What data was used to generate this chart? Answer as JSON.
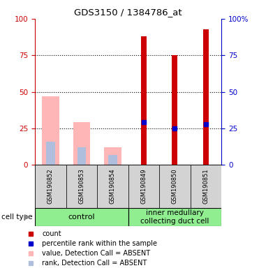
{
  "title": "GDS3150 / 1384786_at",
  "samples": [
    "GSM190852",
    "GSM190853",
    "GSM190854",
    "GSM190849",
    "GSM190850",
    "GSM190851"
  ],
  "red_bars": [
    0,
    0,
    0,
    88,
    75,
    93
  ],
  "pink_bars": [
    47,
    29,
    12,
    0,
    0,
    0
  ],
  "blue_dots_y": [
    0,
    0,
    0,
    29,
    25,
    28
  ],
  "light_blue_bars": [
    16,
    12,
    7,
    0,
    0,
    0
  ],
  "ylim": [
    0,
    100
  ],
  "yticks": [
    0,
    25,
    50,
    75,
    100
  ],
  "ytick_labels_left": [
    "0",
    "25",
    "50",
    "75",
    "100"
  ],
  "ytick_labels_right": [
    "0",
    "25",
    "50",
    "75",
    "100%"
  ],
  "left_axis_color": "#cc0000",
  "right_axis_color": "#0000cc",
  "background_color": "#ffffff",
  "grid_lines": [
    25,
    50,
    75
  ],
  "group_control_label": "control",
  "group_inner_label": "inner medullary\ncollecting duct cell",
  "group_color": "#90ee90",
  "sample_box_color": "#d3d3d3",
  "cell_type_label": "cell type",
  "legend_items": [
    {
      "color": "#cc0000",
      "label": "count"
    },
    {
      "color": "#0000cc",
      "label": "percentile rank within the sample"
    },
    {
      "color": "#ffb6b6",
      "label": "value, Detection Call = ABSENT"
    },
    {
      "color": "#b0bedd",
      "label": "rank, Detection Call = ABSENT"
    }
  ]
}
